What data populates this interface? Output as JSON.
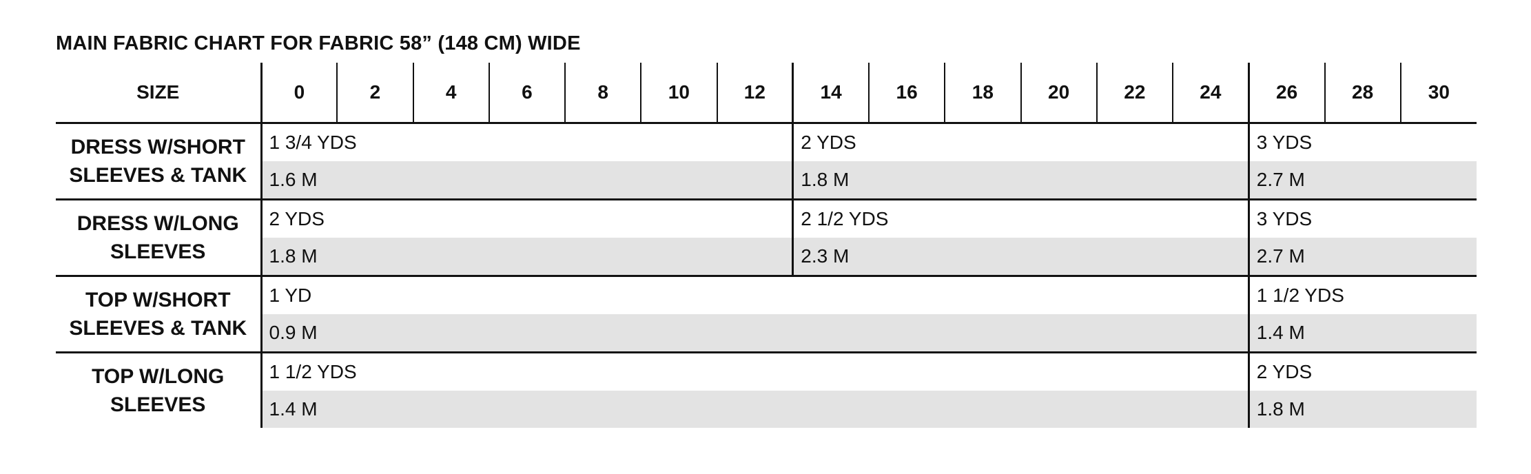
{
  "title": "MAIN FABRIC CHART FOR FABRIC 58” (148 CM) WIDE",
  "table": {
    "corner_label": "SIZE",
    "sizes": [
      "0",
      "2",
      "4",
      "6",
      "8",
      "10",
      "12",
      "14",
      "16",
      "18",
      "20",
      "22",
      "24",
      "26",
      "28",
      "30"
    ],
    "rows": [
      {
        "label_line1": "DRESS W/SHORT",
        "label_line2": "SLEEVES & TANK",
        "yards": [
          "1 3/4 YDS",
          "2 YDS",
          "3 YDS"
        ],
        "meters": [
          "1.6 M",
          "1.8 M",
          "2.7 M"
        ]
      },
      {
        "label_line1": "DRESS W/LONG",
        "label_line2": "SLEEVES",
        "yards": [
          "2 YDS",
          "2 1/2 YDS",
          "3 YDS"
        ],
        "meters": [
          "1.8 M",
          "2.3 M",
          "2.7 M"
        ]
      },
      {
        "label_line1": "TOP W/SHORT",
        "label_line2": "SLEEVES & TANK",
        "yards": [
          "1 YD",
          "1 1/2 YDS"
        ],
        "meters": [
          "0.9 M",
          "1.4 M"
        ]
      },
      {
        "label_line1": "TOP W/LONG",
        "label_line2": "SLEEVES",
        "yards": [
          "1 1/2 YDS",
          "2 YDS"
        ],
        "meters": [
          "1.4 M",
          "1.8 M"
        ]
      }
    ]
  }
}
